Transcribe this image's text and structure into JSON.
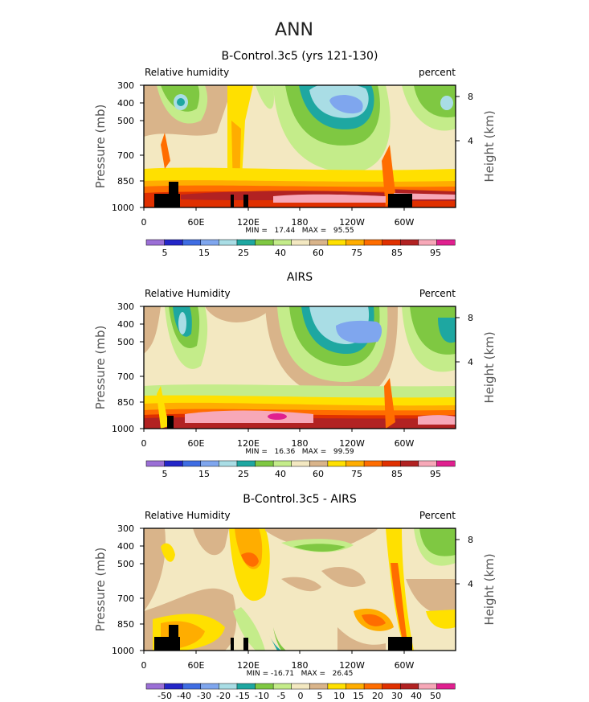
{
  "figure_title": "ANN",
  "colors": {
    "abs_scale": [
      "#9b6fd6",
      "#2426c8",
      "#3f6de3",
      "#7fa6ee",
      "#a9dde5",
      "#1ea7a1",
      "#7fc842",
      "#c4ec8a",
      "#f3e8c1",
      "#d9b48a",
      "#ffe000",
      "#ffad00",
      "#ff6d00",
      "#e03000",
      "#b22222",
      "#f7a8b8",
      "#e0208f"
    ],
    "diff_scale": [
      "#9b6fd6",
      "#2426c8",
      "#3f6de3",
      "#7fa6ee",
      "#a9dde5",
      "#1ea7a1",
      "#7fc842",
      "#c4ec8a",
      "#f3e8c1",
      "#d9b48a",
      "#ffe000",
      "#ffad00",
      "#ff6d00",
      "#e03000",
      "#b22222",
      "#f7a8b8",
      "#e0208f"
    ],
    "land": "#000000"
  },
  "chart_data": [
    {
      "type": "heatmap",
      "title": "B-Control.3c5 (yrs 121-130)",
      "left_label": "Relative humidity",
      "right_label": "percent",
      "ylabel": "Pressure (mb)",
      "y2label": "Height (km)",
      "x_ticks": [
        "0",
        "60E",
        "120E",
        "180",
        "120W",
        "60W"
      ],
      "y_ticks": [
        "300",
        "400",
        "500",
        "700",
        "850",
        "1000"
      ],
      "y2_ticks": [
        "8",
        "4"
      ],
      "stats": "MIN =   17.44   MAX =   95.55",
      "min": 17.44,
      "max": 95.55,
      "colorbar_labels": [
        "5",
        "15",
        "25",
        "40",
        "60",
        "75",
        "85",
        "95"
      ],
      "xlim": [
        0,
        360
      ],
      "ylim": [
        1000,
        300
      ]
    },
    {
      "type": "heatmap",
      "title": "AIRS",
      "left_label": "Relative Humidity",
      "right_label": "Percent",
      "ylabel": "Pressure (mb)",
      "y2label": "Height (km)",
      "x_ticks": [
        "0",
        "60E",
        "120E",
        "180",
        "120W",
        "60W"
      ],
      "y_ticks": [
        "300",
        "400",
        "500",
        "700",
        "850",
        "1000"
      ],
      "y2_ticks": [
        "8",
        "4"
      ],
      "stats": "MIN =   16.36   MAX =   99.59",
      "min": 16.36,
      "max": 99.59,
      "colorbar_labels": [
        "5",
        "15",
        "25",
        "40",
        "60",
        "75",
        "85",
        "95"
      ],
      "xlim": [
        0,
        360
      ],
      "ylim": [
        1000,
        300
      ]
    },
    {
      "type": "heatmap",
      "title": "B-Control.3c5 - AIRS",
      "left_label": "Relative Humidity",
      "right_label": "Percent",
      "ylabel": "Pressure (mb)",
      "y2label": "Height (km)",
      "x_ticks": [
        "0",
        "60E",
        "120E",
        "180",
        "120W",
        "60W"
      ],
      "y_ticks": [
        "300",
        "400",
        "500",
        "700",
        "850",
        "1000"
      ],
      "y2_ticks": [
        "8",
        "4"
      ],
      "stats": "MIN = -16.71   MAX =   26.45",
      "min": -16.71,
      "max": 26.45,
      "colorbar_labels": [
        "-50",
        "-40",
        "-30",
        "-20",
        "-15",
        "-10",
        "-5",
        "0",
        "5",
        "10",
        "15",
        "20",
        "30",
        "40",
        "50"
      ],
      "xlim": [
        0,
        360
      ],
      "ylim": [
        1000,
        300
      ]
    }
  ]
}
